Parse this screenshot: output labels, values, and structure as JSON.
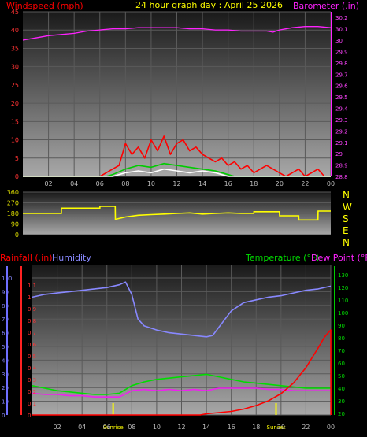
{
  "chart_data": [
    {
      "type": "line",
      "title": "24 hour graph day : April 25 2026",
      "left_axis_label": "Windspeed (mph)",
      "right_axis_label": "Barometer (.in)",
      "x_ticks": [
        "02",
        "04",
        "06",
        "08",
        "10",
        "12",
        "14",
        "16",
        "18",
        "20",
        "22",
        "00"
      ],
      "y_left_ticks": [
        "0",
        "5",
        "10",
        "15",
        "20",
        "25",
        "30",
        "35",
        "40",
        "45"
      ],
      "y_left_range": [
        0,
        45
      ],
      "y_right_ticks": [
        "28.8",
        "28.9",
        "29",
        "29.1",
        "29.2",
        "29.3",
        "29.4",
        "29.5",
        "29.6",
        "29.7",
        "29.8",
        "29.9",
        "30",
        "30.1",
        "30.2"
      ],
      "y_right_range": [
        28.8,
        30.25
      ],
      "series": [
        {
          "axis": "right",
          "color": "#ff22ff",
          "x": [
            0,
            1,
            2,
            3,
            4,
            5,
            6,
            7,
            8,
            9,
            10,
            11,
            12,
            13,
            14,
            15,
            16,
            17,
            18,
            19,
            19.5,
            20,
            21,
            22,
            23,
            24
          ],
          "y": [
            30.0,
            30.02,
            30.04,
            30.05,
            30.06,
            30.08,
            30.09,
            30.1,
            30.1,
            30.11,
            30.11,
            30.11,
            30.11,
            30.1,
            30.1,
            30.09,
            30.09,
            30.08,
            30.08,
            30.08,
            30.07,
            30.09,
            30.11,
            30.12,
            30.12,
            30.11
          ]
        },
        {
          "axis": "left",
          "color": "#ff0000",
          "x": [
            0,
            6,
            6.5,
            7,
            7.5,
            8,
            8.5,
            9,
            9.5,
            10,
            10.5,
            11,
            11.5,
            12,
            12.5,
            13,
            13.5,
            14,
            14.5,
            15,
            15.5,
            16,
            16.5,
            17,
            17.5,
            18,
            18.5,
            19,
            19.5,
            20,
            20.5,
            21,
            21.5,
            22,
            22.5,
            23,
            23.5,
            24
          ],
          "y": [
            0,
            0,
            1,
            2,
            3,
            9,
            6,
            8,
            5,
            10,
            7,
            11,
            6,
            9,
            10,
            7,
            8,
            6,
            5,
            4,
            5,
            3,
            4,
            2,
            3,
            1,
            2,
            3,
            2,
            1,
            0,
            1,
            2,
            0,
            1,
            2,
            0,
            0
          ]
        },
        {
          "axis": "left",
          "color": "#00cc00",
          "x": [
            0,
            6.5,
            7,
            8,
            9,
            10,
            11,
            12,
            13,
            14,
            15,
            16,
            16.5,
            24
          ],
          "y": [
            0,
            0,
            0.5,
            2,
            3,
            2.5,
            3.5,
            3,
            2.5,
            2,
            1.5,
            0.5,
            0,
            0
          ]
        },
        {
          "axis": "left",
          "color": "#ffffff",
          "x": [
            0,
            7,
            8,
            9,
            10,
            11,
            12,
            13,
            14,
            15,
            16,
            24
          ],
          "y": [
            0,
            0,
            1,
            1.5,
            1,
            2,
            1.5,
            1,
            1.5,
            1,
            0,
            0
          ]
        }
      ]
    },
    {
      "type": "line",
      "title": "",
      "y_left_ticks": [
        "360",
        "270",
        "180",
        "90",
        "0"
      ],
      "y_left_range": [
        0,
        360
      ],
      "compass_labels": [
        "N",
        "W",
        "S",
        "E",
        "N"
      ],
      "series": [
        {
          "axis": "left",
          "color": "#ffff00",
          "x": [
            0,
            3,
            3.01,
            6,
            6.01,
            7,
            7.01,
            7.2,
            7.21,
            8,
            9,
            10,
            11,
            12,
            13,
            14,
            15,
            16,
            17,
            18,
            18.01,
            20,
            20.01,
            21.5,
            21.51,
            23,
            23.01,
            24
          ],
          "y": [
            180,
            180,
            225,
            225,
            240,
            240,
            240,
            240,
            130,
            150,
            165,
            170,
            175,
            180,
            185,
            175,
            180,
            185,
            180,
            180,
            195,
            195,
            160,
            160,
            125,
            125,
            200,
            200
          ]
        }
      ]
    },
    {
      "type": "line",
      "title": "",
      "left_label_1": "Rainfall (.in)",
      "left_label_2": "Humidity",
      "right_label_1": "Temperature (°F)",
      "right_label_2": "Dew Point (°F)",
      "x_ticks": [
        "02",
        "04",
        "06",
        "08",
        "10",
        "12",
        "14",
        "16",
        "18",
        "20",
        "22",
        "00"
      ],
      "x_markers": [
        "Sunrise",
        "Sunset"
      ],
      "sunrise_hour": 6.5,
      "sunset_hour": 19.6,
      "humidity_ticks": [
        "0",
        "10",
        "20",
        "30",
        "40",
        "50",
        "60",
        "70",
        "80",
        "90",
        "100"
      ],
      "humidity_range": [
        0,
        100
      ],
      "rain_ticks": [
        "0",
        "0.1",
        "0.2",
        "0.3",
        "0.4",
        "0.5",
        "0.6",
        "0.7",
        "0.8",
        "0.9",
        "1",
        "1.1"
      ],
      "rain_range": [
        0,
        1.2
      ],
      "temp_ticks": [
        "20",
        "30",
        "40",
        "50",
        "60",
        "70",
        "80",
        "90",
        "100",
        "110",
        "120",
        "130"
      ],
      "temp_range": [
        20,
        135
      ],
      "series": [
        {
          "name": "Humidity",
          "axis": "humidity",
          "color": "#8888ff",
          "x": [
            0,
            1,
            2,
            3,
            4,
            5,
            6,
            7,
            7.5,
            8,
            8.5,
            9,
            10,
            11,
            12,
            13,
            14,
            14.5,
            15,
            16,
            17,
            18,
            19,
            20,
            21,
            22,
            23,
            24
          ],
          "y": [
            86,
            88,
            89,
            90,
            91,
            92,
            93,
            95,
            97,
            88,
            70,
            65,
            62,
            60,
            59,
            58,
            57,
            58,
            64,
            76,
            82,
            84,
            86,
            87,
            89,
            91,
            92,
            94
          ]
        },
        {
          "name": "Temperature",
          "axis": "temp",
          "color": "#00dd00",
          "x": [
            0,
            1,
            2,
            3,
            4,
            5,
            6,
            7,
            8,
            9,
            10,
            11,
            12,
            13,
            14,
            15,
            16,
            17,
            18,
            19,
            20,
            21,
            22,
            23,
            24
          ],
          "y": [
            42,
            40,
            38,
            37,
            36,
            35,
            35,
            36,
            42,
            45,
            47,
            48,
            49,
            50,
            51,
            49,
            47,
            45,
            44,
            43,
            42,
            41,
            40,
            40,
            40
          ]
        },
        {
          "name": "Dew Point",
          "axis": "temp",
          "color": "#ee22ee",
          "x": [
            0,
            1,
            2,
            3,
            4,
            5,
            6,
            7,
            8,
            9,
            10,
            11,
            12,
            13,
            14,
            15,
            16,
            17,
            18,
            19,
            20,
            21,
            22,
            23,
            24
          ],
          "y": [
            36,
            35,
            35,
            34,
            34,
            33,
            33,
            33,
            38,
            39,
            38,
            39,
            38,
            39,
            38,
            40,
            40,
            40,
            40,
            39,
            39,
            38,
            38,
            38,
            38
          ]
        },
        {
          "name": "Rainfall",
          "axis": "rain",
          "color": "#ff0000",
          "x": [
            0,
            13.5,
            14,
            15,
            16,
            17,
            18,
            19,
            20,
            21,
            22,
            23,
            23.5,
            24,
            24.01
          ],
          "y": [
            0,
            0,
            0.01,
            0.02,
            0.03,
            0.05,
            0.08,
            0.12,
            0.18,
            0.27,
            0.4,
            0.57,
            0.66,
            0.72,
            0
          ]
        }
      ]
    }
  ]
}
